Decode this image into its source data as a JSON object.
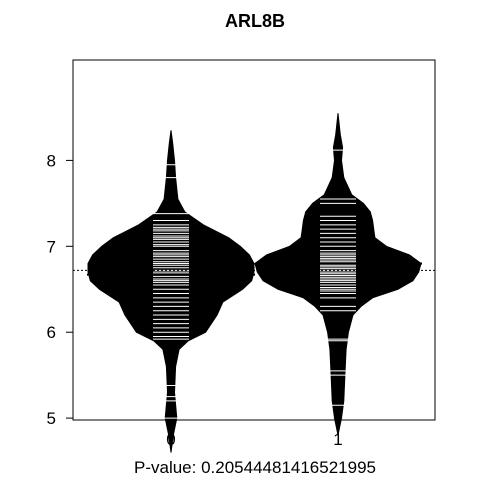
{
  "chart_data": {
    "type": "beanplot",
    "title": "ARL8B",
    "xlabel": "P-value: 0.20544481416521995",
    "ylabel": "",
    "categories": [
      "0",
      "1"
    ],
    "ylim": [
      4.5,
      8.7
    ],
    "yticks": [
      5,
      6,
      7,
      8
    ],
    "overall_mean": 6.72,
    "groups": [
      {
        "label": "0",
        "mean": 6.67,
        "range": [
          4.6,
          8.35
        ],
        "density": [
          [
            4.6,
            0.0
          ],
          [
            4.8,
            0.02
          ],
          [
            5.0,
            0.05
          ],
          [
            5.3,
            0.03
          ],
          [
            5.6,
            0.04
          ],
          [
            5.8,
            0.07
          ],
          [
            5.9,
            0.15
          ],
          [
            6.0,
            0.3
          ],
          [
            6.2,
            0.4
          ],
          [
            6.35,
            0.45
          ],
          [
            6.5,
            0.62
          ],
          [
            6.6,
            0.7
          ],
          [
            6.7,
            0.72
          ],
          [
            6.8,
            0.72
          ],
          [
            6.9,
            0.68
          ],
          [
            7.0,
            0.6
          ],
          [
            7.1,
            0.5
          ],
          [
            7.25,
            0.28
          ],
          [
            7.4,
            0.12
          ],
          [
            7.55,
            0.06
          ],
          [
            7.8,
            0.04
          ],
          [
            8.0,
            0.03
          ],
          [
            8.2,
            0.015
          ],
          [
            8.35,
            0.0
          ]
        ],
        "points": [
          5.0,
          5.2,
          5.25,
          5.38,
          5.92,
          5.95,
          6.0,
          6.05,
          6.1,
          6.15,
          6.2,
          6.25,
          6.3,
          6.35,
          6.4,
          6.45,
          6.5,
          6.55,
          6.58,
          6.6,
          6.62,
          6.65,
          6.68,
          6.7,
          6.72,
          6.75,
          6.78,
          6.8,
          6.82,
          6.85,
          6.88,
          6.9,
          6.92,
          6.95,
          7.0,
          7.02,
          7.05,
          7.08,
          7.1,
          7.12,
          7.15,
          7.18,
          7.2,
          7.22,
          7.25,
          7.3,
          7.38,
          7.8,
          7.95
        ]
      },
      {
        "label": "1",
        "mean": 6.8,
        "range": [
          4.8,
          8.55
        ],
        "density": [
          [
            4.8,
            0.0
          ],
          [
            5.0,
            0.03
          ],
          [
            5.2,
            0.05
          ],
          [
            5.5,
            0.06
          ],
          [
            5.8,
            0.07
          ],
          [
            6.0,
            0.09
          ],
          [
            6.2,
            0.13
          ],
          [
            6.3,
            0.2
          ],
          [
            6.4,
            0.3
          ],
          [
            6.5,
            0.52
          ],
          [
            6.6,
            0.65
          ],
          [
            6.7,
            0.7
          ],
          [
            6.8,
            0.72
          ],
          [
            6.9,
            0.62
          ],
          [
            7.0,
            0.42
          ],
          [
            7.1,
            0.32
          ],
          [
            7.2,
            0.31
          ],
          [
            7.3,
            0.3
          ],
          [
            7.4,
            0.28
          ],
          [
            7.5,
            0.22
          ],
          [
            7.6,
            0.12
          ],
          [
            7.8,
            0.05
          ],
          [
            8.0,
            0.03
          ],
          [
            8.15,
            0.04
          ],
          [
            8.3,
            0.02
          ],
          [
            8.55,
            0.0
          ]
        ],
        "points": [
          5.15,
          5.5,
          5.55,
          5.9,
          5.92,
          6.25,
          6.3,
          6.4,
          6.45,
          6.48,
          6.5,
          6.52,
          6.55,
          6.58,
          6.6,
          6.62,
          6.64,
          6.66,
          6.68,
          6.7,
          6.72,
          6.74,
          6.76,
          6.78,
          6.8,
          6.82,
          6.84,
          6.86,
          6.88,
          6.9,
          6.92,
          6.95,
          7.0,
          7.05,
          7.1,
          7.15,
          7.2,
          7.25,
          7.3,
          7.35,
          7.5,
          7.55,
          8.12
        ]
      }
    ]
  }
}
